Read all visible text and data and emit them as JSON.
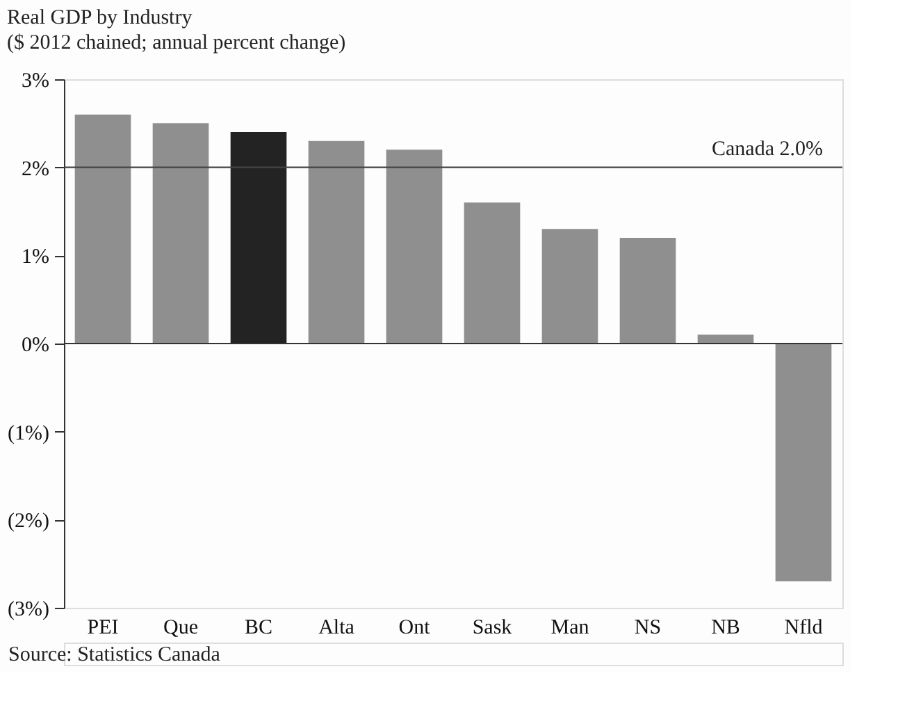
{
  "chart_data": {
    "type": "bar",
    "title": "Real GDP by Industry",
    "subtitle": "($ 2012 chained; annual percent change)",
    "categories": [
      "PEI",
      "Que",
      "BC",
      "Alta",
      "Ont",
      "Sask",
      "Man",
      "NS",
      "NB",
      "Nfld"
    ],
    "values": [
      2.6,
      2.5,
      2.4,
      2.3,
      2.2,
      1.6,
      1.3,
      1.2,
      0.1,
      -2.7
    ],
    "colors": [
      "#8f8f8f",
      "#8f8f8f",
      "#232323",
      "#8f8f8f",
      "#8f8f8f",
      "#8f8f8f",
      "#8f8f8f",
      "#8f8f8f",
      "#8f8f8f",
      "#8f8f8f"
    ],
    "ylim": [
      -3,
      3
    ],
    "yticks": [
      {
        "value": -3,
        "label": "(3%)"
      },
      {
        "value": -2,
        "label": "(2%)"
      },
      {
        "value": -1,
        "label": "(1%)"
      },
      {
        "value": 0,
        "label": "0%"
      },
      {
        "value": 1,
        "label": "1%"
      },
      {
        "value": 2,
        "label": "2%"
      },
      {
        "value": 3,
        "label": "3%"
      }
    ],
    "ref_lines": [
      {
        "axis": "y",
        "value": 2,
        "label": "Canada 2.0%",
        "color": "#444444"
      }
    ],
    "grid": false,
    "annotations": [
      "Source: Statistics Canada"
    ]
  }
}
